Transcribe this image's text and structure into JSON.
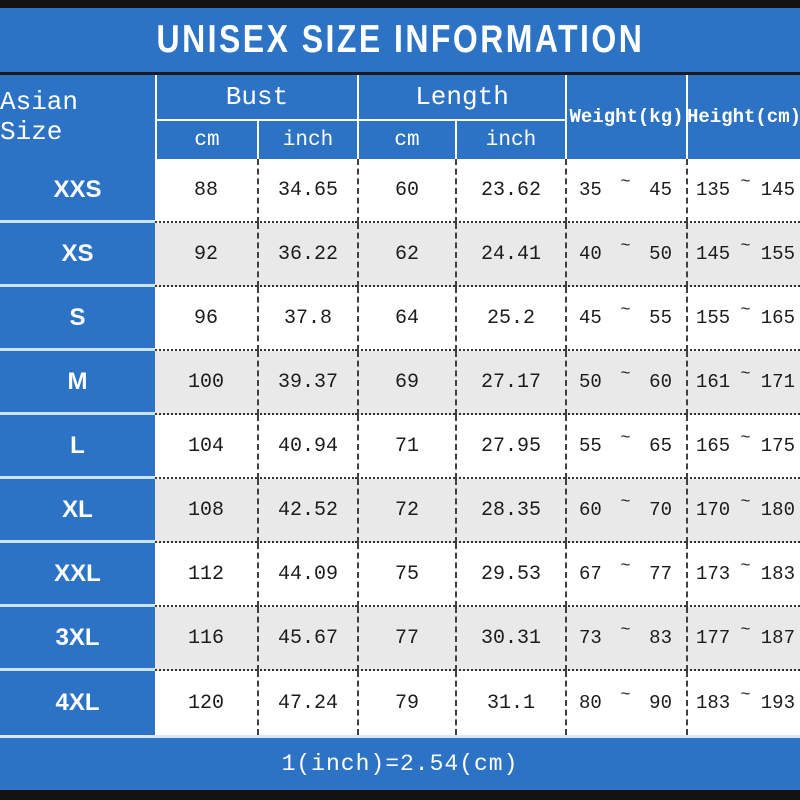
{
  "title": "UNISEX SIZE INFORMATION",
  "table": {
    "size_col_header": "Asian Size",
    "bust_group_label": "Bust",
    "length_group_label": "Length",
    "unit_cm": "cm",
    "unit_inch": "inch",
    "weight_header": "Weight(kg)",
    "height_header": "Height(cm)",
    "range_separator": "~",
    "rows": [
      {
        "size": "XXS",
        "bust_cm": "88",
        "bust_inch": "34.65",
        "length_cm": "60",
        "length_inch": "23.62",
        "weight_min": "35",
        "weight_max": "45",
        "height_min": "135",
        "height_max": "145"
      },
      {
        "size": "XS",
        "bust_cm": "92",
        "bust_inch": "36.22",
        "length_cm": "62",
        "length_inch": "24.41",
        "weight_min": "40",
        "weight_max": "50",
        "height_min": "145",
        "height_max": "155"
      },
      {
        "size": "S",
        "bust_cm": "96",
        "bust_inch": "37.8",
        "length_cm": "64",
        "length_inch": "25.2",
        "weight_min": "45",
        "weight_max": "55",
        "height_min": "155",
        "height_max": "165"
      },
      {
        "size": "M",
        "bust_cm": "100",
        "bust_inch": "39.37",
        "length_cm": "69",
        "length_inch": "27.17",
        "weight_min": "50",
        "weight_max": "60",
        "height_min": "161",
        "height_max": "171"
      },
      {
        "size": "L",
        "bust_cm": "104",
        "bust_inch": "40.94",
        "length_cm": "71",
        "length_inch": "27.95",
        "weight_min": "55",
        "weight_max": "65",
        "height_min": "165",
        "height_max": "175"
      },
      {
        "size": "XL",
        "bust_cm": "108",
        "bust_inch": "42.52",
        "length_cm": "72",
        "length_inch": "28.35",
        "weight_min": "60",
        "weight_max": "70",
        "height_min": "170",
        "height_max": "180"
      },
      {
        "size": "XXL",
        "bust_cm": "112",
        "bust_inch": "44.09",
        "length_cm": "75",
        "length_inch": "29.53",
        "weight_min": "67",
        "weight_max": "77",
        "height_min": "173",
        "height_max": "183"
      },
      {
        "size": "3XL",
        "bust_cm": "116",
        "bust_inch": "45.67",
        "length_cm": "77",
        "length_inch": "30.31",
        "weight_min": "73",
        "weight_max": "83",
        "height_min": "177",
        "height_max": "187"
      },
      {
        "size": "4XL",
        "bust_cm": "120",
        "bust_inch": "47.24",
        "length_cm": "79",
        "length_inch": "31.1",
        "weight_min": "80",
        "weight_max": "90",
        "height_min": "183",
        "height_max": "193"
      }
    ]
  },
  "footer": {
    "note": "1(inch)=2.54(cm)"
  },
  "colors": {
    "accent_blue": "#2d73c5",
    "alt_row_gray": "#e9e9e9",
    "frame_black": "#131313"
  },
  "chart_data": {
    "type": "table",
    "title": "UNISEX SIZE INFORMATION",
    "columns": [
      "Asian Size",
      "Bust cm",
      "Bust inch",
      "Length cm",
      "Length inch",
      "Weight(kg)",
      "Height(cm)"
    ],
    "rows": [
      [
        "XXS",
        88,
        34.65,
        60,
        23.62,
        "35~45",
        "135~145"
      ],
      [
        "XS",
        92,
        36.22,
        62,
        24.41,
        "40~50",
        "145~155"
      ],
      [
        "S",
        96,
        37.8,
        64,
        25.2,
        "45~55",
        "155~165"
      ],
      [
        "M",
        100,
        39.37,
        69,
        27.17,
        "50~60",
        "161~171"
      ],
      [
        "L",
        104,
        40.94,
        71,
        27.95,
        "55~65",
        "165~175"
      ],
      [
        "XL",
        108,
        42.52,
        72,
        28.35,
        "60~70",
        "170~180"
      ],
      [
        "XXL",
        112,
        44.09,
        75,
        29.53,
        "67~77",
        "173~183"
      ],
      [
        "3XL",
        116,
        45.67,
        77,
        30.31,
        "73~83",
        "177~187"
      ],
      [
        "4XL",
        120,
        47.24,
        79,
        31.1,
        "80~90",
        "183~193"
      ]
    ],
    "note": "1(inch)=2.54(cm)",
    "layout": "header spans: Bust and Length each split into cm/inch sub-columns; Weight and Height span both header rows; rows alternate white/gray"
  }
}
